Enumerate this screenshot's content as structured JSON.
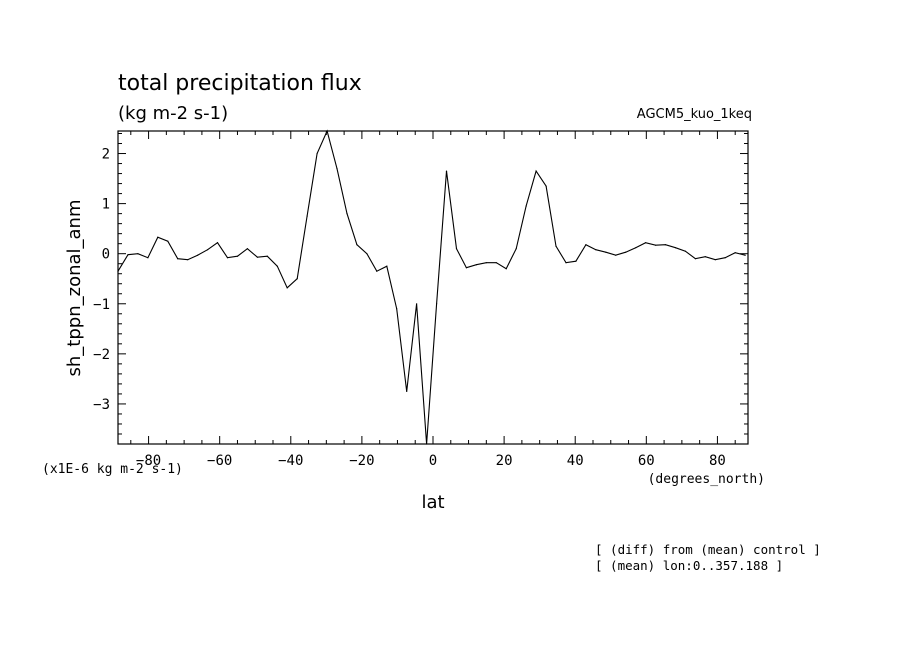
{
  "chart_data": {
    "type": "line",
    "title": "total precipitation flux",
    "subtitle": "(kg m-2 s-1)",
    "dataset_label": "AGCM5_kuo_1keq",
    "ylabel": "sh_tppn_zonal_anm",
    "yunits": "(x1E-6 kg m-2 s-1)",
    "xlabel": "lat",
    "xunits": "(degrees_north)",
    "xlim": [
      -88.6,
      88.6
    ],
    "ylim": [
      -3.8,
      2.45
    ],
    "xticks": [
      -80,
      -60,
      -40,
      -20,
      0,
      20,
      40,
      60,
      80
    ],
    "xtick_labels": [
      "−80",
      "−60",
      "−40",
      "−20",
      "0",
      "20",
      "40",
      "60",
      "80"
    ],
    "yticks": [
      2,
      1,
      0,
      -1,
      -2,
      -3
    ],
    "ytick_labels": [
      "2",
      "1",
      "0",
      "−1",
      "−2",
      "−3"
    ],
    "notes": [
      "[ (diff) from (mean) control ]",
      "[ (mean) lon:0..357.188 ]"
    ],
    "x": [
      -88.6,
      -85.8,
      -83.0,
      -80.2,
      -77.4,
      -74.6,
      -71.8,
      -69.0,
      -66.2,
      -63.4,
      -60.6,
      -57.8,
      -55.0,
      -52.2,
      -49.4,
      -46.6,
      -43.8,
      -41.0,
      -38.2,
      -35.4,
      -32.6,
      -29.8,
      -27.0,
      -24.2,
      -21.4,
      -18.6,
      -15.8,
      -13.0,
      -10.2,
      -7.4,
      -4.6,
      -1.8,
      1.0,
      3.8,
      6.6,
      9.4,
      12.2,
      15.0,
      17.8,
      20.6,
      23.4,
      26.2,
      29.0,
      31.8,
      34.6,
      37.4,
      40.2,
      43.0,
      45.8,
      48.6,
      51.4,
      54.2,
      57.0,
      59.8,
      62.6,
      65.4,
      68.2,
      71.0,
      73.8,
      76.6,
      79.4,
      82.2,
      85.0,
      87.8
    ],
    "values": [
      -0.35,
      -0.02,
      0.0,
      -0.08,
      0.33,
      0.25,
      -0.1,
      -0.12,
      -0.03,
      0.08,
      0.22,
      -0.08,
      -0.05,
      0.1,
      -0.07,
      -0.05,
      -0.25,
      -0.68,
      -0.5,
      0.75,
      2.0,
      2.45,
      1.7,
      0.8,
      0.18,
      0.0,
      -0.35,
      -0.25,
      -1.1,
      -2.75,
      -1.0,
      -3.8,
      -1.0,
      1.65,
      0.1,
      -0.28,
      -0.22,
      -0.18,
      -0.18,
      -0.3,
      0.1,
      0.95,
      1.65,
      1.35,
      0.15,
      -0.18,
      -0.15,
      0.18,
      0.08,
      0.03,
      -0.03,
      0.03,
      0.12,
      0.22,
      0.17,
      0.18,
      0.12,
      0.05,
      -0.1,
      -0.06,
      -0.12,
      -0.08,
      0.02,
      -0.03
    ]
  }
}
